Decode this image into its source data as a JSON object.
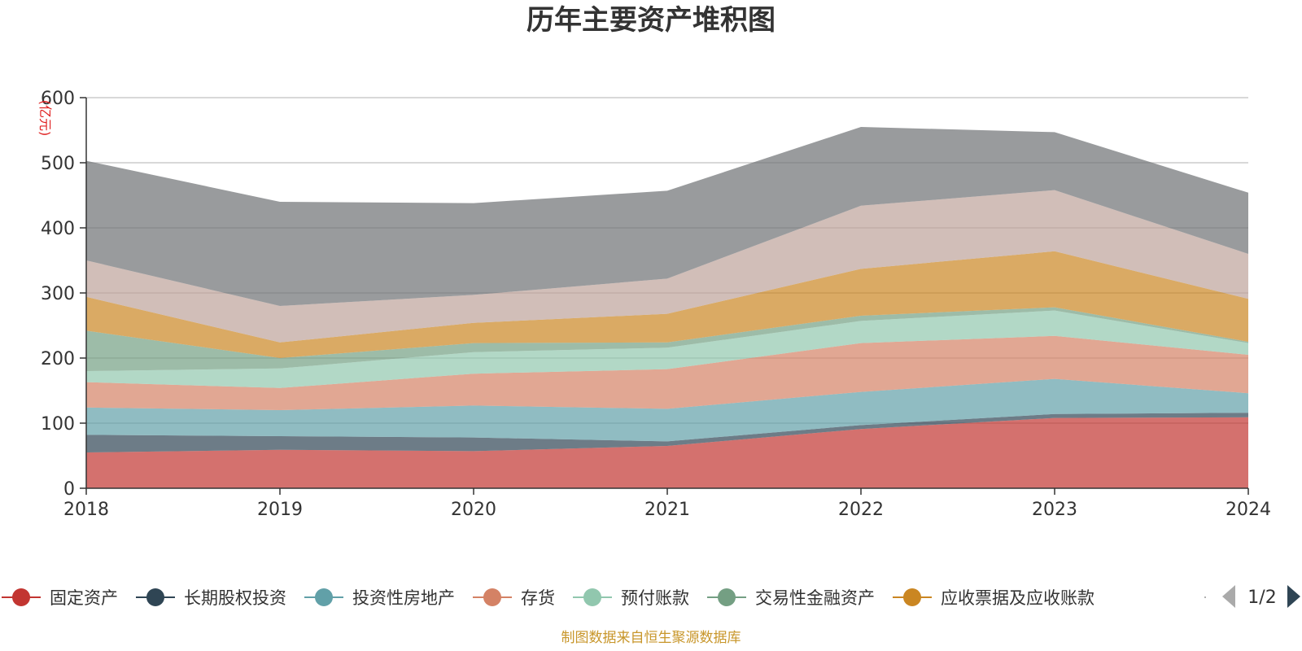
{
  "chart_data": {
    "type": "area",
    "stacked": true,
    "title": "历年主要资产堆积图",
    "unit_label": "(亿元)",
    "x": [
      "2018",
      "2019",
      "2020",
      "2021",
      "2022",
      "2023",
      "2024"
    ],
    "ylim": [
      0,
      600
    ],
    "yticks": [
      0,
      100,
      200,
      300,
      400,
      500,
      600
    ],
    "grid": true,
    "series": [
      {
        "name": "固定资产",
        "color": "#c23531",
        "values": [
          55,
          59,
          57,
          65,
          91,
          108,
          109
        ]
      },
      {
        "name": "长期股权投资",
        "color": "#2f4554",
        "values": [
          27,
          21,
          21,
          7,
          6,
          6,
          7
        ]
      },
      {
        "name": "投资性房地产",
        "color": "#61a0a8",
        "values": [
          42,
          40,
          49,
          50,
          51,
          54,
          30
        ]
      },
      {
        "name": "存货",
        "color": "#d48265",
        "values": [
          39,
          34,
          49,
          61,
          75,
          66,
          59
        ]
      },
      {
        "name": "预付账款",
        "color": "#91c7ae",
        "values": [
          17,
          30,
          33,
          33,
          34,
          39,
          18
        ]
      },
      {
        "name": "交易性金融资产",
        "color": "#749f83",
        "values": [
          62,
          16,
          14,
          8,
          8,
          5,
          2
        ]
      },
      {
        "name": "应收票据及应收账款",
        "color": "#ca8622",
        "values": [
          52,
          24,
          31,
          44,
          72,
          86,
          66
        ]
      },
      {
        "name": "",
        "color": "#bda29a",
        "values": [
          56,
          56,
          43,
          54,
          97,
          94,
          69
        ]
      },
      {
        "name": "",
        "color": "#6e7074",
        "values": [
          153,
          160,
          141,
          135,
          121,
          89,
          94
        ]
      }
    ],
    "legend_position": "bottom",
    "legend_page": "1/2"
  },
  "footer": "制图数据来自恒生聚源数据库"
}
